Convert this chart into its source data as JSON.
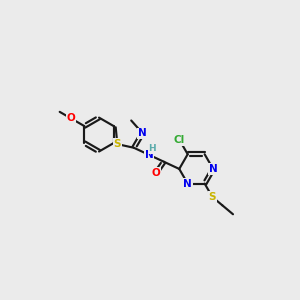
{
  "bg": "#ebebeb",
  "bond_color": "#1a1a1a",
  "atom_colors": {
    "S": "#c8b400",
    "N": "#0000ee",
    "O": "#ff0000",
    "Cl": "#33aa33",
    "H": "#5aabab"
  },
  "lw": 1.55,
  "fs": 7.5
}
